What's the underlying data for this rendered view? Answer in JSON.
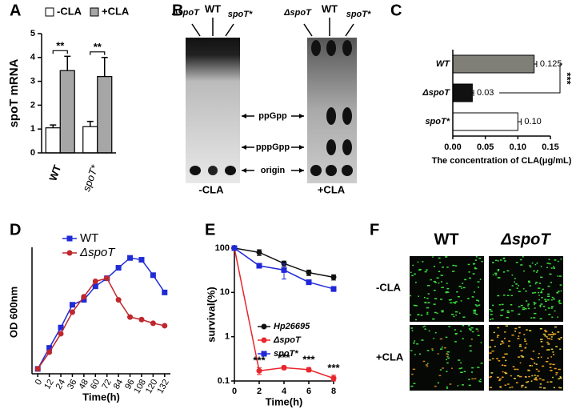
{
  "chart_data": [
    {
      "type": "bar",
      "label": "A",
      "ylabel": "spoT mRNA",
      "categories": [
        "WT",
        "spoT*"
      ],
      "series": [
        {
          "name": "-CLA",
          "color": "#ffffff",
          "values": [
            1.05,
            1.1
          ],
          "errors": [
            0.12,
            0.22
          ]
        },
        {
          "name": "+CLA",
          "color": "#a6a6a6",
          "values": [
            3.45,
            3.2
          ],
          "errors": [
            0.6,
            0.8
          ]
        }
      ],
      "annotations": [
        "**",
        "**"
      ],
      "ylim": [
        0,
        5
      ],
      "yticks": [
        0,
        1,
        2,
        3,
        4,
        5
      ]
    },
    {
      "type": "hbar",
      "label": "C",
      "xlabel": "The concentration of CLA(μg/mL)",
      "categories": [
        "WT",
        "ΔspoT",
        "spoT*"
      ],
      "values": [
        0.125,
        0.03,
        0.1
      ],
      "value_labels": [
        "0.125",
        "0.03",
        "0.10"
      ],
      "errors": [
        0.004,
        0.002,
        0.005
      ],
      "colors": [
        "#7f7f78",
        "#111111",
        "#ffffff"
      ],
      "annotations": [
        "***"
      ],
      "xlim": [
        0,
        0.15
      ],
      "xticks": [
        {
          "value": 0,
          "label": "0.00"
        },
        {
          "value": 0.05,
          "label": "0.05"
        },
        {
          "value": 0.1,
          "label": "0.10"
        },
        {
          "value": 0.15,
          "label": "0.15"
        }
      ]
    },
    {
      "type": "line",
      "label": "D",
      "xlabel": "Time(h)",
      "ylabel": "OD 600nm",
      "x": [
        0,
        12,
        24,
        36,
        48,
        60,
        72,
        84,
        96,
        108,
        120,
        132
      ],
      "series": [
        {
          "name": "WT",
          "color": "#1f2bd6",
          "marker": "square",
          "values": [
            0.08,
            0.42,
            0.75,
            1.12,
            1.2,
            1.42,
            1.55,
            1.72,
            1.88,
            1.85,
            1.6,
            1.32
          ]
        },
        {
          "name": "ΔspoT",
          "color": "#c0272d",
          "marker": "circle",
          "values": [
            0.08,
            0.35,
            0.65,
            1.0,
            1.25,
            1.5,
            1.55,
            1.2,
            0.92,
            0.88,
            0.82,
            0.78
          ]
        }
      ],
      "xlim": [
        -6,
        138
      ],
      "ylim": [
        0,
        2
      ],
      "xticks": [
        0,
        12,
        24,
        36,
        48,
        60,
        72,
        84,
        96,
        108,
        120,
        132
      ]
    },
    {
      "type": "line",
      "label": "E",
      "xlabel": "Time(h)",
      "ylabel": "survival(%)",
      "log_y": true,
      "x": [
        0,
        2,
        4,
        6,
        8
      ],
      "series": [
        {
          "name": "Hp26695",
          "color": "#111111",
          "marker": "circle",
          "values": [
            100,
            80,
            45,
            28,
            22
          ],
          "errors": [
            0,
            12,
            6,
            4,
            3
          ]
        },
        {
          "name": "ΔspoT",
          "color": "#e8262b",
          "marker": "circle",
          "values": [
            100,
            0.17,
            0.2,
            0.18,
            0.115
          ],
          "errors": [
            0,
            0.03,
            0.02,
            0.02,
            0.02
          ]
        },
        {
          "name": "spoT*",
          "color": "#2027d8",
          "marker": "square",
          "values": [
            100,
            40,
            32,
            17,
            12
          ],
          "errors": [
            0,
            3,
            12,
            2,
            1.5
          ]
        }
      ],
      "annotations": [
        "***",
        "***",
        "***",
        "***"
      ],
      "xlim": [
        0,
        8
      ],
      "ylim": [
        0.1,
        100
      ],
      "xticks": [
        0,
        2,
        4,
        6,
        8
      ],
      "yticks": [
        0.1,
        1,
        10,
        100
      ]
    }
  ],
  "gel": {
    "label": "B",
    "lanes": [
      "ΔspoT",
      "WT",
      "spoT*"
    ],
    "bands": [
      "ppGpp",
      "pppGpp",
      "origin"
    ],
    "conditions": [
      "-CLA",
      "+CLA"
    ]
  },
  "micrograph": {
    "label": "F",
    "columns": [
      "WT",
      "ΔspoT"
    ],
    "rows": [
      "-CLA",
      "+CLA"
    ]
  }
}
